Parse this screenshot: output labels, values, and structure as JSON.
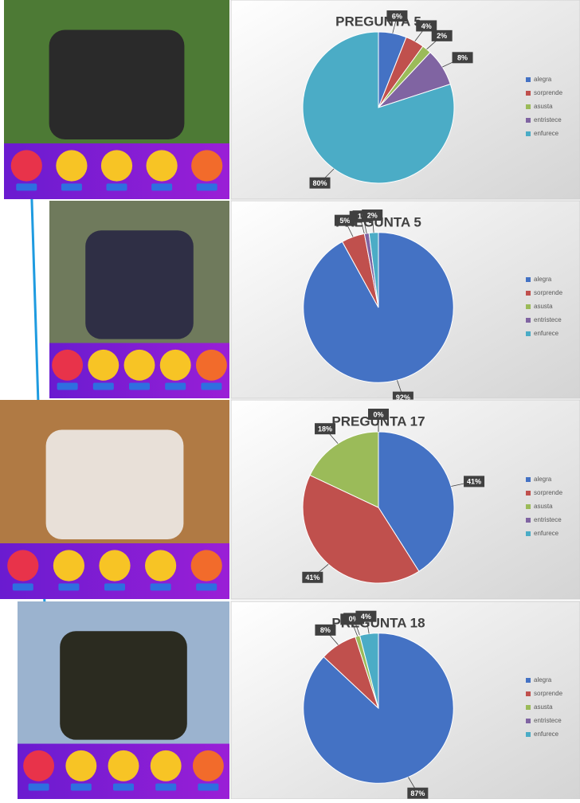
{
  "chart_data": [
    {
      "type": "pie",
      "title": "PREGUNTA 5",
      "categories": [
        "alegra",
        "sorprende",
        "asusta",
        "entristece",
        "enfurece"
      ],
      "values": [
        6,
        4,
        2,
        8,
        80
      ],
      "value_labels": [
        "6%",
        "4%",
        "2%",
        "8%",
        "80%"
      ],
      "colors": [
        "#4472c4",
        "#c0504d",
        "#9bbb59",
        "#8064a2",
        "#4bacc6"
      ],
      "legend": "right"
    },
    {
      "type": "pie",
      "title": "PREGUNTA 5",
      "categories": [
        "alegra",
        "sorprende",
        "asusta",
        "entristece",
        "enfurece"
      ],
      "values": [
        92,
        5,
        0,
        1,
        2
      ],
      "value_labels": [
        "92%",
        "5%",
        "0%",
        "1%",
        "2%"
      ],
      "colors": [
        "#4472c4",
        "#c0504d",
        "#9bbb59",
        "#8064a2",
        "#4bacc6"
      ],
      "legend": "right"
    },
    {
      "type": "pie",
      "title": "PREGUNTA 17",
      "categories": [
        "alegra",
        "sorprende",
        "asusta",
        "entristece",
        "enfurece"
      ],
      "values": [
        41,
        41,
        18,
        0,
        0
      ],
      "value_labels": [
        "41%",
        "41%",
        "18%",
        "0%",
        "0%"
      ],
      "colors": [
        "#4472c4",
        "#c0504d",
        "#9bbb59",
        "#8064a2",
        "#4bacc6"
      ],
      "legend": "right"
    },
    {
      "type": "pie",
      "title": "PREGUNTA 18",
      "categories": [
        "alegra",
        "sorprende",
        "asusta",
        "entristece",
        "enfurece"
      ],
      "values": [
        87,
        8,
        1,
        0,
        4
      ],
      "value_labels": [
        "87%",
        "8%",
        "1%",
        "0%",
        "4%"
      ],
      "colors": [
        "#4472c4",
        "#c0504d",
        "#9bbb59",
        "#8064a2",
        "#4bacc6"
      ],
      "legend": "right"
    }
  ]
}
